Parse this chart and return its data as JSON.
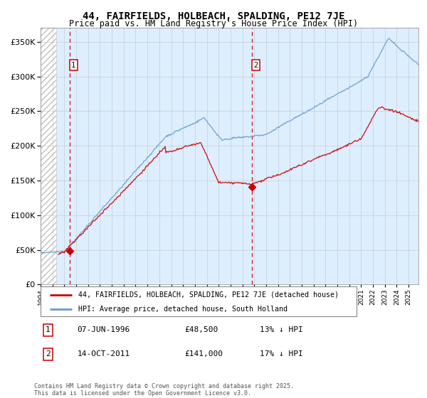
{
  "title1": "44, FAIRFIELDS, HOLBEACH, SPALDING, PE12 7JE",
  "title2": "Price paid vs. HM Land Registry's House Price Index (HPI)",
  "ylim": [
    0,
    370000
  ],
  "yticks": [
    0,
    50000,
    100000,
    150000,
    200000,
    250000,
    300000,
    350000
  ],
  "ytick_labels": [
    "£0",
    "£50K",
    "£100K",
    "£150K",
    "£200K",
    "£250K",
    "£300K",
    "£350K"
  ],
  "xlim_start": 1994.0,
  "xlim_end": 2025.83,
  "transaction1_x": 1996.44,
  "transaction1_y": 48500,
  "transaction2_x": 2011.79,
  "transaction2_y": 141000,
  "legend_line1": "44, FAIRFIELDS, HOLBEACH, SPALDING, PE12 7JE (detached house)",
  "legend_line2": "HPI: Average price, detached house, South Holland",
  "table_row1_date": "07-JUN-1996",
  "table_row1_price": "£48,500",
  "table_row1_hpi": "13% ↓ HPI",
  "table_row2_date": "14-OCT-2011",
  "table_row2_price": "£141,000",
  "table_row2_hpi": "17% ↓ HPI",
  "footer": "Contains HM Land Registry data © Crown copyright and database right 2025.\nThis data is licensed under the Open Government Licence v3.0.",
  "red_color": "#cc0000",
  "blue_color": "#6699cc",
  "bg_color": "#ddeeff",
  "grid_color": "#bbbbbb"
}
